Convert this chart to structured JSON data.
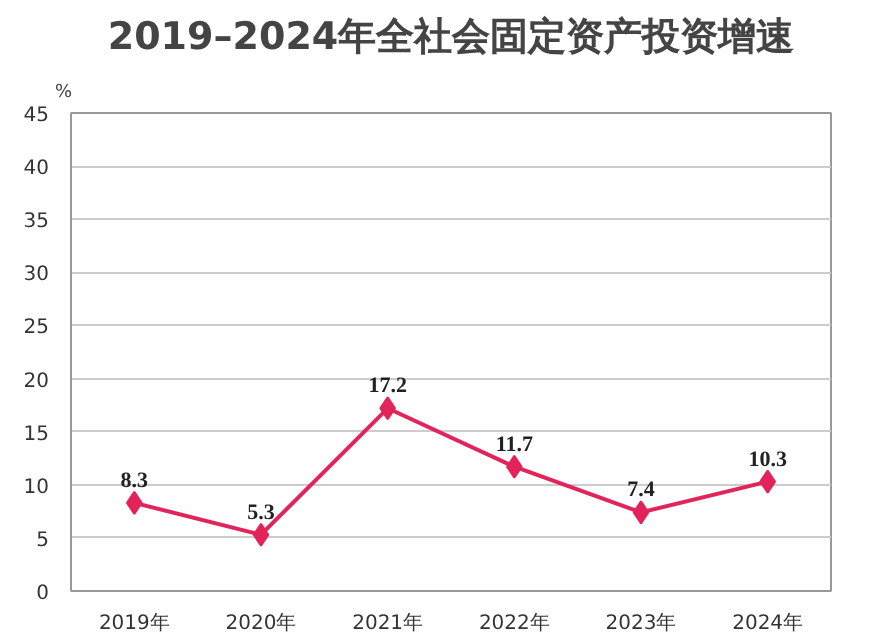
{
  "chart_data": {
    "type": "line",
    "title": "2019–2024年全社会固定资产投资增速",
    "ylabel": "%",
    "categories": [
      "2019年",
      "2020年",
      "2021年",
      "2022年",
      "2023年",
      "2024年"
    ],
    "series": [
      {
        "color": "#e2245a",
        "values": [
          8.3,
          5.3,
          17.2,
          11.7,
          7.4,
          10.3
        ]
      }
    ],
    "ylim": [
      0,
      45
    ],
    "yticks": [
      0,
      5,
      10,
      15,
      20,
      25,
      30,
      35,
      40,
      45
    ],
    "grid": "y",
    "marker": "diamond",
    "line_style": "solid",
    "data_labels": true
  }
}
